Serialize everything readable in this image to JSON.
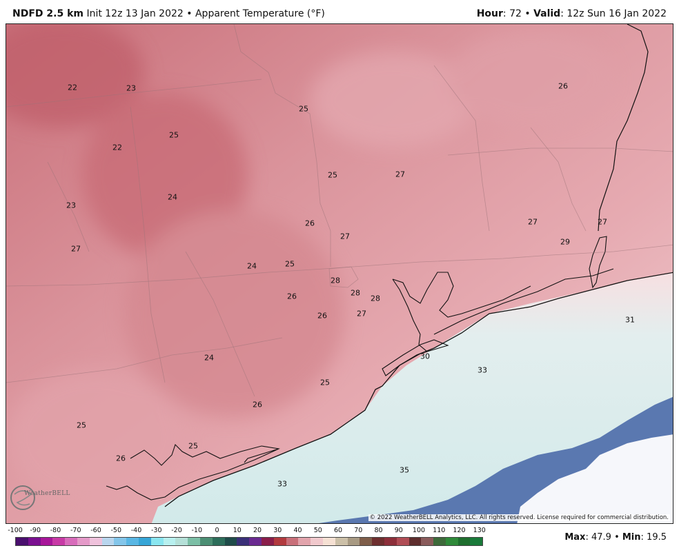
{
  "header": {
    "model": "NDFD 2.5 km",
    "init": "Init 12z 13 Jan 2022",
    "sep": "•",
    "field": "Apparent Temperature (°F)",
    "hour_label": "Hour",
    "hour_value": ": 72",
    "valid_label": "Valid",
    "valid_value": ": 12z Sun 16 Jan 2022"
  },
  "map": {
    "values": [
      "22",
      "23",
      "25",
      "26",
      "22",
      "25",
      "25",
      "27",
      "23",
      "24",
      "26",
      "27",
      "27",
      "27",
      "29",
      "27",
      "24",
      "25",
      "28",
      "28",
      "28",
      "26",
      "26",
      "27",
      "31",
      "24",
      "30",
      "33",
      "25",
      "26",
      "25",
      "25",
      "26",
      "35",
      "33"
    ],
    "copyright": "© 2022 WeatherBELL Analytics, LLC. All rights reserved. License required for commercial distribution.",
    "logo_text": "WeatherBELL",
    "colors": {
      "land_cold": "#c9707a",
      "land_mid": "#e2a4ac",
      "land_warm": "#f1c9cd",
      "coast": "#fbe6e8",
      "water_light": "#d8eeee",
      "water_mid": "#d4ebeb",
      "water_blue": "#5a78b0",
      "water_far": "#f6f7fb"
    }
  },
  "legend": {
    "ticks": [
      "-100",
      "-90",
      "-80",
      "-70",
      "-60",
      "-50",
      "-40",
      "-30",
      "-20",
      "-10",
      "0",
      "10",
      "20",
      "30",
      "40",
      "50",
      "60",
      "70",
      "80",
      "90",
      "100",
      "110",
      "120",
      "130"
    ],
    "colors": [
      "#4a0f6e",
      "#7a1090",
      "#a8179a",
      "#c83aa6",
      "#d86cbb",
      "#e59ac9",
      "#efc2dc",
      "#b9d6ee",
      "#84c6ea",
      "#5ab7e4",
      "#37a6d7",
      "#8ae6f0",
      "#b8f0ef",
      "#b5e0d8",
      "#7cbfa6",
      "#4c8f74",
      "#2d6e5b",
      "#1f4c4a",
      "#3a3078",
      "#6a2a90",
      "#8a1e4a",
      "#b23a3e",
      "#c9707a",
      "#e2a4ac",
      "#f1c9cd",
      "#f6e1d4",
      "#ccc0a8",
      "#a89a83",
      "#7f5e4a",
      "#6e2f2f",
      "#8d2f3a",
      "#b04d55",
      "#5e2d2d",
      "#8a5b5b",
      "#3d6a3a",
      "#2f8a3a",
      "#1f6e2e",
      "#1a7a3a"
    ],
    "max_label": "Max",
    "max_value": ": 47.9",
    "min_label": "Min",
    "min_value": ": 19.5"
  }
}
